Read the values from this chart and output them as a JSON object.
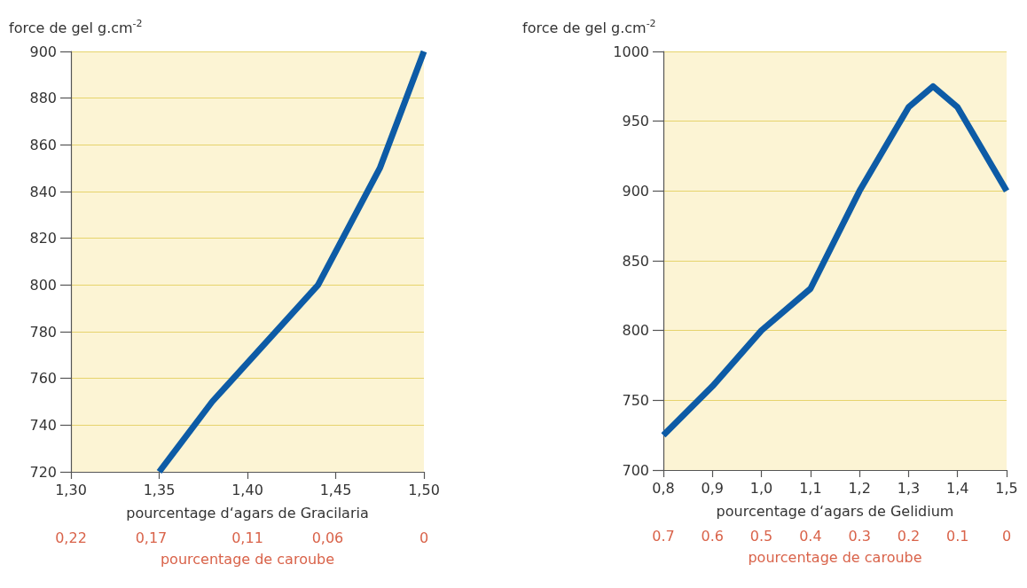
{
  "chart_data": [
    {
      "type": "line",
      "ylabel": "force de gel g.cm$^{-2}$",
      "xlabel": "pourcentage d‘agars de Gracilaria",
      "x2label": "pourcentage de caroube",
      "xlim": [
        1.3,
        1.5
      ],
      "xticks": [
        {
          "value": 1.3,
          "label": "1,30"
        },
        {
          "value": 1.35,
          "label": "1,35"
        },
        {
          "value": 1.4,
          "label": "1,40"
        },
        {
          "value": 1.45,
          "label": "1,45"
        },
        {
          "value": 1.5,
          "label": "1,50"
        }
      ],
      "x2lim": [
        0.22,
        0
      ],
      "x2ticks": [
        {
          "value": 0.22,
          "label": "0,22"
        },
        {
          "value": 0.17,
          "label": "0,17"
        },
        {
          "value": 0.11,
          "label": "0,11"
        },
        {
          "value": 0.06,
          "label": "0,06"
        },
        0
      ],
      "ylim": [
        720,
        900
      ],
      "yticks": [
        720,
        740,
        760,
        780,
        800,
        820,
        840,
        860,
        880,
        900
      ],
      "grid": "y",
      "marker": "none",
      "series": [
        {
          "color": "#0d5ba6",
          "x": [
            1.35,
            1.38,
            1.44,
            1.475,
            1.5
          ],
          "values": [
            720,
            750,
            800,
            850,
            900
          ]
        }
      ]
    },
    {
      "type": "line",
      "ylabel": "force de gel g.cm$^{-2}$",
      "xlabel": "pourcentage d‘agars de Gelidium",
      "x2label": "pourcentage de caroube",
      "xlim": [
        0.8,
        1.5
      ],
      "xticks": [
        {
          "value": 0.8,
          "label": "0,8"
        },
        {
          "value": 0.9,
          "label": "0,9"
        },
        {
          "value": 1.0,
          "label": "1,0"
        },
        {
          "value": 1.1,
          "label": "1,1"
        },
        {
          "value": 1.2,
          "label": "1,2"
        },
        {
          "value": 1.3,
          "label": "1,3"
        },
        {
          "value": 1.4,
          "label": "1,4"
        },
        {
          "value": 1.5,
          "label": "1,5"
        }
      ],
      "x2lim": [
        0.7,
        0
      ],
      "x2ticks": [
        0.7,
        0.6,
        0.5,
        0.4,
        0.3,
        0.2,
        0.1,
        0
      ],
      "ylim": [
        700,
        1000
      ],
      "yticks": [
        700,
        750,
        800,
        850,
        900,
        950,
        1000
      ],
      "grid": "y",
      "marker": "none",
      "series": [
        {
          "color": "#0d5ba6",
          "x": [
            0.8,
            0.9,
            1.0,
            1.1,
            1.2,
            1.3,
            1.35,
            1.4,
            1.5
          ],
          "values": [
            725,
            760,
            800,
            830,
            900,
            960,
            975,
            960,
            900
          ]
        }
      ]
    }
  ]
}
